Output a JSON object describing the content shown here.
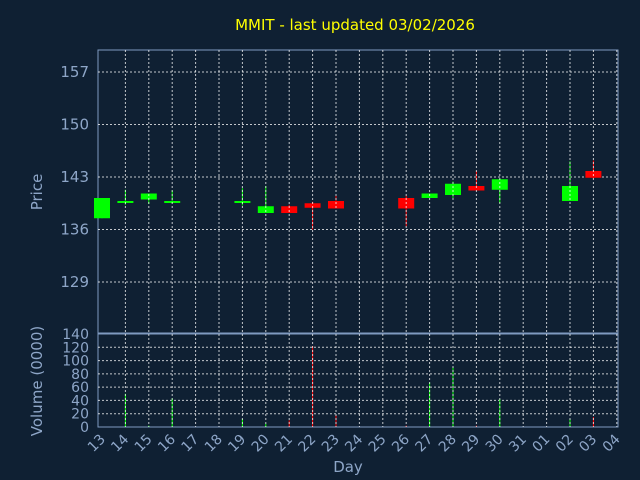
{
  "chart_data": {
    "type": "candlestick",
    "title": "MMIT - last updated 03/02/2026",
    "price_panel": {
      "ylabel": "Price",
      "ylim": [
        129,
        157
      ],
      "yticks": [
        157,
        150,
        143,
        136,
        129
      ]
    },
    "volume_panel": {
      "ylabel": "Volume (0000)",
      "ylim": [
        0,
        140
      ],
      "yticks": [
        140,
        120,
        100,
        80,
        60,
        40,
        20,
        0
      ]
    },
    "xlabel": "Day",
    "x_ticks": [
      "13",
      "14",
      "15",
      "16",
      "17",
      "18",
      "19",
      "20",
      "21",
      "22",
      "23",
      "24",
      "25",
      "26",
      "27",
      "28",
      "29",
      "30",
      "31",
      "01",
      "02",
      "03",
      "04"
    ],
    "grid": true,
    "up_color": "#00ff00",
    "down_color": "#ff0000",
    "candles": [
      {
        "day": "13",
        "open": 137.5,
        "high": 140.2,
        "low": 137.5,
        "close": 140.2,
        "volume": 0
      },
      {
        "day": "14",
        "open": 139.6,
        "high": 141.3,
        "low": 139.3,
        "close": 139.8,
        "volume": 50
      },
      {
        "day": "15",
        "open": 140.0,
        "high": 140.8,
        "low": 139.4,
        "close": 140.8,
        "volume": 2
      },
      {
        "day": "16",
        "open": 139.7,
        "high": 141.2,
        "low": 139.5,
        "close": 139.8,
        "volume": 43
      },
      {
        "day": "19",
        "open": 139.7,
        "high": 141.5,
        "low": 139.2,
        "close": 139.8,
        "volume": 12
      },
      {
        "day": "20",
        "open": 138.2,
        "high": 141.8,
        "low": 138.2,
        "close": 139.1,
        "volume": 5
      },
      {
        "day": "21",
        "open": 139.1,
        "high": 139.3,
        "low": 138.2,
        "close": 138.2,
        "volume": 10
      },
      {
        "day": "22",
        "open": 139.5,
        "high": 139.7,
        "low": 136.0,
        "close": 138.9,
        "volume": 122
      },
      {
        "day": "23",
        "open": 139.8,
        "high": 140.5,
        "low": 138.8,
        "close": 138.8,
        "volume": 18
      },
      {
        "day": "26",
        "open": 140.2,
        "high": 140.5,
        "low": 136.4,
        "close": 138.8,
        "volume": 2
      },
      {
        "day": "27",
        "open": 140.2,
        "high": 140.8,
        "low": 140.2,
        "close": 140.8,
        "volume": 67
      },
      {
        "day": "28",
        "open": 140.6,
        "high": 142.4,
        "low": 140.2,
        "close": 142.1,
        "volume": 90
      },
      {
        "day": "29",
        "open": 141.8,
        "high": 143.8,
        "low": 141.2,
        "close": 141.2,
        "volume": 2
      },
      {
        "day": "30",
        "open": 141.3,
        "high": 142.8,
        "low": 139.5,
        "close": 142.7,
        "volume": 42
      },
      {
        "day": "02",
        "open": 139.8,
        "high": 145.1,
        "low": 139.8,
        "close": 141.8,
        "volume": 12
      },
      {
        "day": "03",
        "open": 143.8,
        "high": 145.2,
        "low": 142.8,
        "close": 142.9,
        "volume": 15
      }
    ]
  }
}
